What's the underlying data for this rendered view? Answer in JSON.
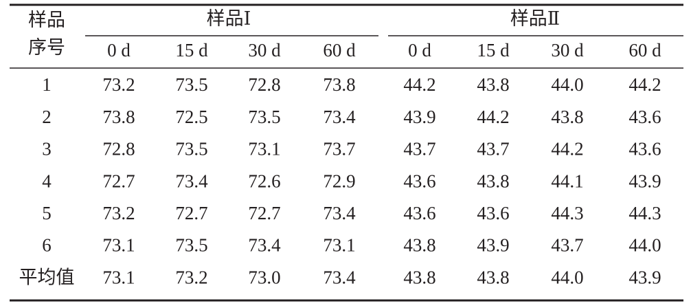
{
  "table": {
    "corner": [
      "样品",
      "序号"
    ],
    "groups": [
      "样品Ⅰ",
      "样品Ⅱ"
    ],
    "subheaders": [
      [
        "0 d",
        "15 d",
        "30 d",
        "60 d"
      ],
      [
        "0 d",
        "15 d",
        "30 d",
        "60 d"
      ]
    ],
    "rows": [
      [
        "1",
        "73.2",
        "73.5",
        "72.8",
        "73.8",
        "44.2",
        "43.8",
        "44.0",
        "44.2"
      ],
      [
        "2",
        "73.8",
        "72.5",
        "73.5",
        "73.4",
        "43.9",
        "44.2",
        "43.8",
        "43.6"
      ],
      [
        "3",
        "72.8",
        "73.5",
        "73.1",
        "73.7",
        "43.7",
        "43.7",
        "44.2",
        "43.6"
      ],
      [
        "4",
        "72.7",
        "73.4",
        "72.6",
        "72.9",
        "43.6",
        "43.8",
        "44.1",
        "43.9"
      ],
      [
        "5",
        "73.2",
        "72.7",
        "72.7",
        "73.4",
        "43.6",
        "43.6",
        "44.3",
        "44.3"
      ],
      [
        "6",
        "73.1",
        "73.5",
        "73.4",
        "73.1",
        "43.8",
        "43.9",
        "43.7",
        "44.0"
      ],
      [
        "平均值",
        "73.1",
        "73.2",
        "73.0",
        "73.4",
        "43.8",
        "43.8",
        "44.0",
        "43.9"
      ]
    ]
  }
}
